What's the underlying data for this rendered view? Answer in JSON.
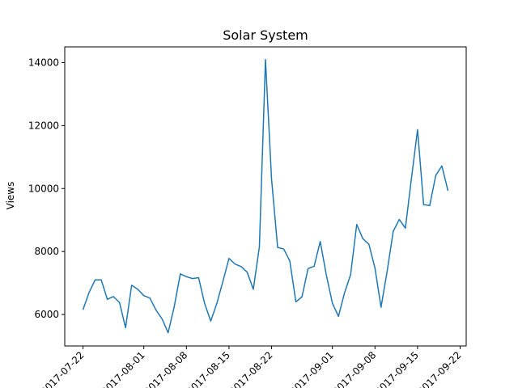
{
  "chart_data": {
    "type": "line",
    "title": "Solar System",
    "xlabel": "",
    "ylabel": "Views",
    "x_tick_labels": [
      "2017-07-22",
      "2017-08-01",
      "2017-08-08",
      "2017-08-15",
      "2017-08-22",
      "2017-09-01",
      "2017-09-08",
      "2017-09-15",
      "2017-09-22"
    ],
    "y_tick_labels": [
      "6000",
      "8000",
      "10000",
      "12000",
      "14000"
    ],
    "ylim": [
      5000,
      14500
    ],
    "grid": false,
    "color": "#1f77b4",
    "x": [
      "2017-07-22",
      "2017-07-23",
      "2017-07-24",
      "2017-07-25",
      "2017-07-26",
      "2017-07-27",
      "2017-07-28",
      "2017-07-29",
      "2017-07-30",
      "2017-07-31",
      "2017-08-01",
      "2017-08-02",
      "2017-08-03",
      "2017-08-04",
      "2017-08-05",
      "2017-08-06",
      "2017-08-07",
      "2017-08-08",
      "2017-08-09",
      "2017-08-10",
      "2017-08-11",
      "2017-08-12",
      "2017-08-13",
      "2017-08-14",
      "2017-08-15",
      "2017-08-16",
      "2017-08-17",
      "2017-08-18",
      "2017-08-19",
      "2017-08-20",
      "2017-08-21",
      "2017-08-22",
      "2017-08-23",
      "2017-08-24",
      "2017-08-25",
      "2017-08-26",
      "2017-08-27",
      "2017-08-28",
      "2017-08-29",
      "2017-08-30",
      "2017-08-31",
      "2017-09-01",
      "2017-09-02",
      "2017-09-03",
      "2017-09-04",
      "2017-09-05",
      "2017-09-06",
      "2017-09-07",
      "2017-09-08",
      "2017-09-09",
      "2017-09-10",
      "2017-09-11",
      "2017-09-12",
      "2017-09-13",
      "2017-09-14",
      "2017-09-15",
      "2017-09-16",
      "2017-09-17",
      "2017-09-18",
      "2017-09-19",
      "2017-09-20"
    ],
    "series": [
      {
        "values": [
          6150,
          6700,
          7100,
          7100,
          6480,
          6570,
          6380,
          5580,
          6930,
          6800,
          6600,
          6520,
          6140,
          5860,
          5420,
          6250,
          7290,
          7200,
          7140,
          7170,
          6350,
          5790,
          6350,
          7050,
          7780,
          7600,
          7520,
          7340,
          6800,
          8150,
          14100,
          10300,
          8130,
          8080,
          7700,
          6400,
          6560,
          7460,
          7530,
          8320,
          7260,
          6360,
          5940,
          6690,
          7270,
          8860,
          8410,
          8230,
          7480,
          6230,
          7370,
          8640,
          9020,
          8740,
          10320,
          11870,
          9490,
          9460,
          10420,
          10720,
          9930
        ]
      }
    ]
  }
}
